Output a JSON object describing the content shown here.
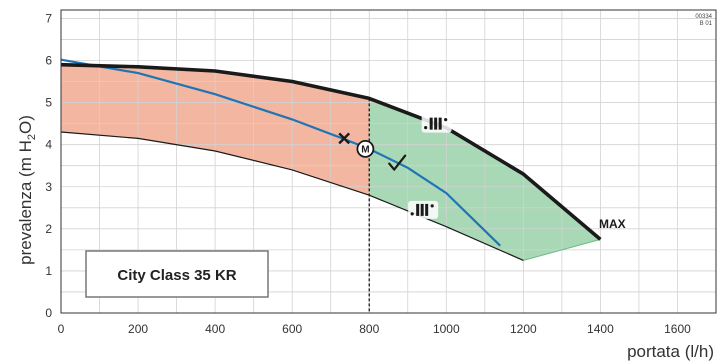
{
  "chart_data": {
    "type": "line",
    "xlabel": "portata (l/h)",
    "ylabel_main": "prevalenza (m H",
    "ylabel_sub": "2",
    "ylabel_end": "O)",
    "x_ticks": [
      0,
      200,
      400,
      600,
      800,
      1000,
      1200,
      1400,
      1600
    ],
    "y_ticks": [
      0,
      1,
      2,
      3,
      4,
      5,
      6,
      7
    ],
    "xlim": [
      0,
      1700
    ],
    "ylim": [
      0,
      7.2
    ],
    "grid": true,
    "drawing_code": [
      "00334",
      "B 01"
    ],
    "model_label": "City Class 35 KR",
    "max_label": "MAX",
    "series": [
      {
        "role": "max-curve",
        "color": "#1a1a1a",
        "x": [
          0,
          200,
          400,
          600,
          800,
          1000,
          1200,
          1400
        ],
        "y": [
          5.9,
          5.85,
          5.75,
          5.5,
          5.1,
          4.4,
          3.3,
          1.75
        ]
      },
      {
        "role": "min-curve",
        "color": "#1a1a1a",
        "x": [
          0,
          200,
          400,
          600,
          800,
          1000,
          1200
        ],
        "y": [
          4.3,
          4.15,
          3.85,
          3.4,
          2.8,
          2.05,
          1.25
        ]
      },
      {
        "role": "proportional-curve",
        "color": "#1f74b5",
        "x": [
          0,
          200,
          400,
          600,
          730,
          800,
          900,
          1000,
          1140
        ],
        "y": [
          6.02,
          5.7,
          5.2,
          4.6,
          4.15,
          3.9,
          3.45,
          2.85,
          1.6
        ]
      }
    ],
    "regions": [
      {
        "role": "range-below-800",
        "color": "#f3b6a0",
        "x_range": [
          0,
          800
        ]
      },
      {
        "role": "range-above-800",
        "color": "#a8d8b5",
        "x_range": [
          800,
          1400
        ]
      }
    ],
    "reference_line": {
      "x": 800,
      "style": "dashed"
    },
    "markers": [
      {
        "role": "cross",
        "x": 735,
        "y": 4.15
      },
      {
        "role": "symbol-M",
        "x": 790,
        "y": 3.9,
        "text": "M"
      },
      {
        "role": "check",
        "x": 870,
        "y": 3.55
      },
      {
        "role": "speed-icon",
        "x": 975,
        "y": 4.5
      },
      {
        "role": "speed-icon",
        "x": 940,
        "y": 2.45
      }
    ]
  }
}
